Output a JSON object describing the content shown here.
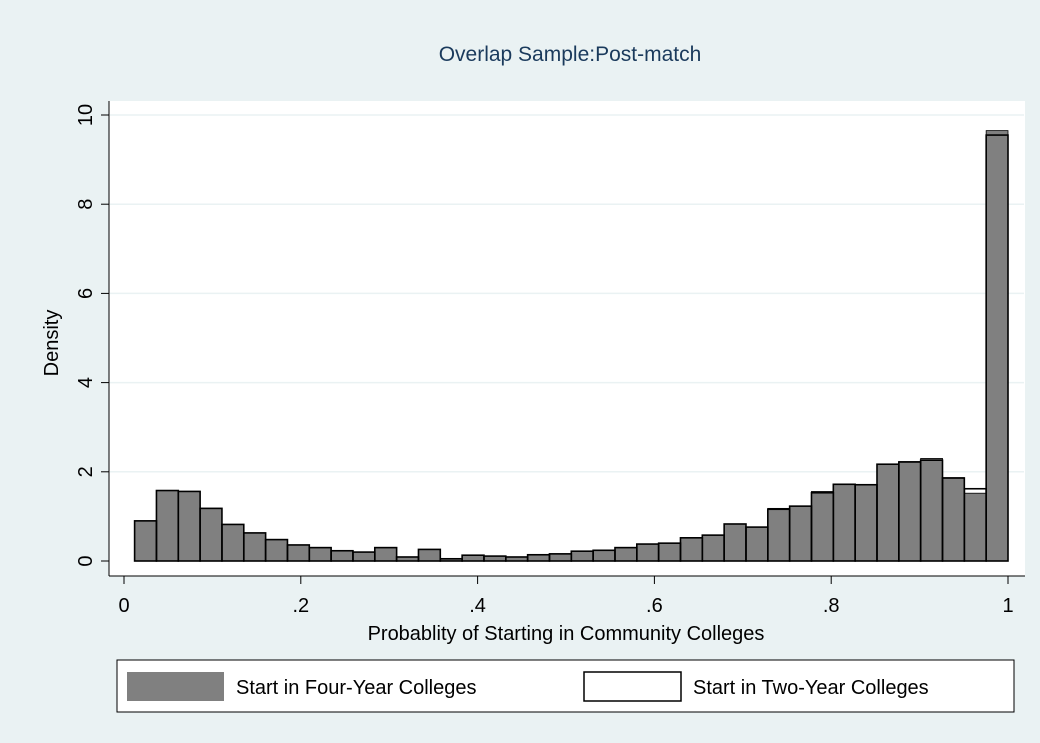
{
  "colors": {
    "background": "#eaf2f3",
    "plot_background": "#ffffff",
    "title": "#1a3a5c",
    "four_year_fill": "#808080",
    "two_year_fill": "none",
    "bar_outline": "#000000",
    "gridline": "#eaf2f3"
  },
  "chart_data": {
    "type": "bar",
    "subtype": "overlaid-histogram",
    "title": "Overlap Sample:Post-match",
    "xlabel": "Probablity of Starting in Community Colleges",
    "ylabel": "Density",
    "xlim": [
      0,
      1
    ],
    "ylim": [
      0,
      10
    ],
    "xticks": [
      0,
      0.2,
      0.4,
      0.6,
      0.8,
      1
    ],
    "xtick_labels": [
      "0",
      ".2",
      ".4",
      ".6",
      ".8",
      "1"
    ],
    "yticks": [
      0,
      2,
      4,
      6,
      8,
      10
    ],
    "ytick_labels": [
      "0",
      "2",
      "4",
      "6",
      "8",
      "10"
    ],
    "grid": true,
    "legend_position": "bottom",
    "bin_start": 0.012,
    "bin_width": 0.0247,
    "series": [
      {
        "name": "Start in Four-Year Colleges",
        "style": "filled",
        "values": [
          0.9,
          1.58,
          1.56,
          1.18,
          0.82,
          0.63,
          0.48,
          0.36,
          0.3,
          0.23,
          0.2,
          0.3,
          0.09,
          0.26,
          0.05,
          0.13,
          0.11,
          0.09,
          0.14,
          0.16,
          0.22,
          0.24,
          0.3,
          0.38,
          0.4,
          0.52,
          0.58,
          0.83,
          0.76,
          1.18,
          1.23,
          1.56,
          1.72,
          1.71,
          2.17,
          2.23,
          2.3,
          1.87,
          1.52,
          9.65
        ]
      },
      {
        "name": "Start in Two-Year Colleges",
        "style": "outline",
        "values": [
          0.9,
          1.58,
          1.56,
          1.18,
          0.82,
          0.63,
          0.48,
          0.36,
          0.3,
          0.23,
          0.2,
          0.3,
          0.09,
          0.26,
          0.05,
          0.13,
          0.11,
          0.09,
          0.14,
          0.16,
          0.22,
          0.24,
          0.3,
          0.38,
          0.4,
          0.52,
          0.58,
          0.83,
          0.76,
          1.16,
          1.23,
          1.53,
          1.72,
          1.71,
          2.17,
          2.22,
          2.26,
          1.86,
          1.62,
          9.55
        ]
      }
    ]
  }
}
